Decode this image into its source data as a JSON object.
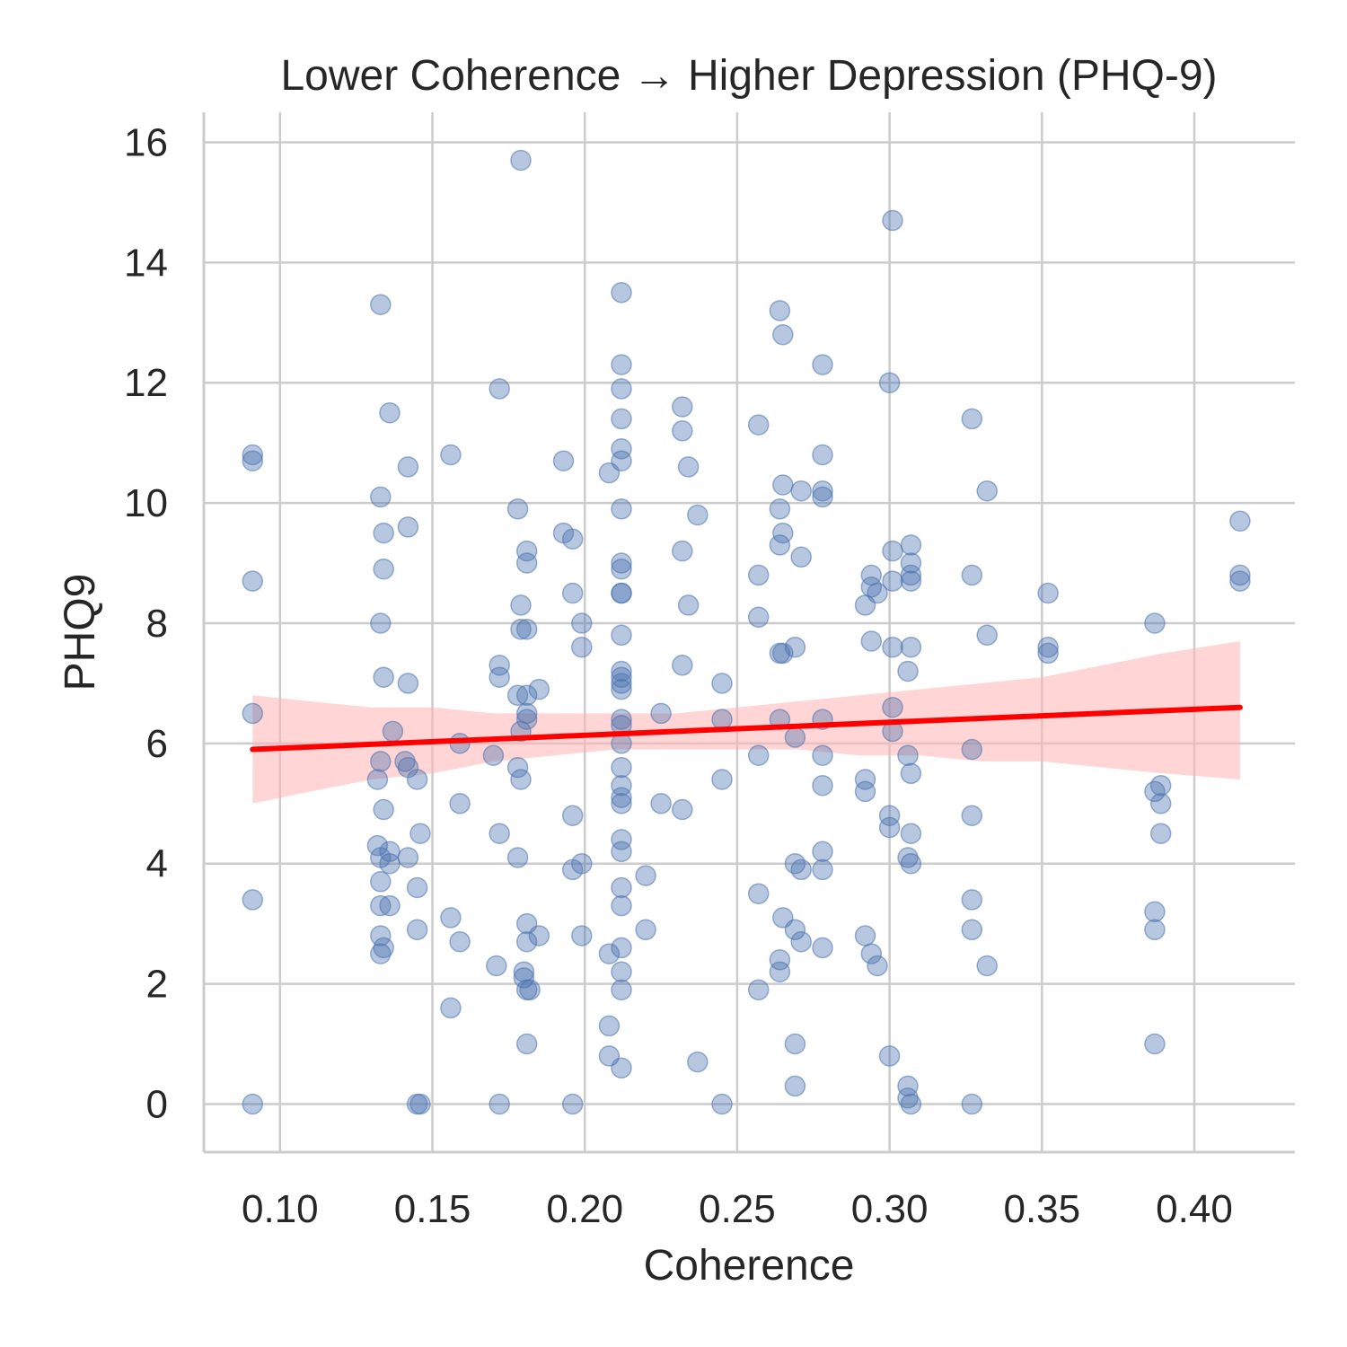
{
  "chart_data": {
    "type": "scatter",
    "title": "Lower Coherence → Higher Depression (PHQ-9)",
    "xlabel": "Coherence",
    "ylabel": "PHQ9",
    "xlim": [
      0.075,
      0.433
    ],
    "ylim": [
      -0.8,
      16.5
    ],
    "xticks": [
      0.1,
      0.15,
      0.2,
      0.25,
      0.3,
      0.35,
      0.4
    ],
    "xtick_labels": [
      "0.10",
      "0.15",
      "0.20",
      "0.25",
      "0.30",
      "0.35",
      "0.40"
    ],
    "yticks": [
      0,
      2,
      4,
      6,
      8,
      10,
      12,
      14,
      16
    ],
    "ytick_labels": [
      "0",
      "2",
      "4",
      "6",
      "8",
      "10",
      "12",
      "14",
      "16"
    ],
    "grid": true,
    "point_color": "#4C72B0",
    "regression_color": "#ff0000",
    "ci_color": "#ffb3b3",
    "points": [
      [
        0.091,
        10.8
      ],
      [
        0.091,
        10.7
      ],
      [
        0.091,
        8.7
      ],
      [
        0.091,
        6.5
      ],
      [
        0.091,
        3.4
      ],
      [
        0.091,
        0.0
      ],
      [
        0.133,
        13.3
      ],
      [
        0.133,
        10.1
      ],
      [
        0.134,
        9.5
      ],
      [
        0.134,
        8.9
      ],
      [
        0.133,
        8.0
      ],
      [
        0.134,
        7.1
      ],
      [
        0.132,
        5.4
      ],
      [
        0.133,
        5.7
      ],
      [
        0.134,
        4.9
      ],
      [
        0.132,
        4.3
      ],
      [
        0.133,
        4.1
      ],
      [
        0.133,
        3.7
      ],
      [
        0.133,
        3.3
      ],
      [
        0.133,
        2.8
      ],
      [
        0.133,
        2.5
      ],
      [
        0.134,
        2.6
      ],
      [
        0.136,
        11.5
      ],
      [
        0.137,
        6.2
      ],
      [
        0.136,
        4.2
      ],
      [
        0.136,
        4.0
      ],
      [
        0.136,
        3.3
      ],
      [
        0.142,
        10.6
      ],
      [
        0.142,
        9.6
      ],
      [
        0.142,
        7.0
      ],
      [
        0.141,
        5.7
      ],
      [
        0.142,
        5.6
      ],
      [
        0.142,
        4.1
      ],
      [
        0.145,
        5.4
      ],
      [
        0.145,
        3.6
      ],
      [
        0.145,
        2.9
      ],
      [
        0.145,
        0.0
      ],
      [
        0.146,
        0.0
      ],
      [
        0.146,
        4.5
      ],
      [
        0.156,
        10.8
      ],
      [
        0.156,
        3.1
      ],
      [
        0.156,
        1.6
      ],
      [
        0.159,
        6.0
      ],
      [
        0.159,
        5.0
      ],
      [
        0.159,
        2.7
      ],
      [
        0.171,
        2.3
      ],
      [
        0.172,
        11.9
      ],
      [
        0.172,
        7.3
      ],
      [
        0.172,
        7.1
      ],
      [
        0.172,
        4.5
      ],
      [
        0.172,
        0.0
      ],
      [
        0.17,
        5.8
      ],
      [
        0.178,
        9.9
      ],
      [
        0.178,
        6.8
      ],
      [
        0.178,
        5.6
      ],
      [
        0.178,
        4.1
      ],
      [
        0.179,
        15.7
      ],
      [
        0.179,
        8.3
      ],
      [
        0.179,
        7.9
      ],
      [
        0.179,
        6.2
      ],
      [
        0.179,
        5.4
      ],
      [
        0.181,
        9.2
      ],
      [
        0.181,
        9.0
      ],
      [
        0.181,
        7.9
      ],
      [
        0.181,
        6.8
      ],
      [
        0.181,
        6.5
      ],
      [
        0.181,
        6.4
      ],
      [
        0.181,
        3.0
      ],
      [
        0.181,
        2.7
      ],
      [
        0.181,
        1.9
      ],
      [
        0.181,
        1.0
      ],
      [
        0.18,
        2.1
      ],
      [
        0.18,
        2.2
      ],
      [
        0.182,
        1.9
      ],
      [
        0.185,
        6.9
      ],
      [
        0.185,
        2.8
      ],
      [
        0.193,
        10.7
      ],
      [
        0.193,
        9.5
      ],
      [
        0.196,
        9.4
      ],
      [
        0.196,
        8.5
      ],
      [
        0.196,
        4.8
      ],
      [
        0.196,
        3.9
      ],
      [
        0.196,
        0.0
      ],
      [
        0.199,
        8.0
      ],
      [
        0.199,
        7.6
      ],
      [
        0.199,
        4.0
      ],
      [
        0.199,
        2.8
      ],
      [
        0.208,
        10.5
      ],
      [
        0.208,
        2.5
      ],
      [
        0.208,
        1.3
      ],
      [
        0.208,
        0.8
      ],
      [
        0.212,
        13.5
      ],
      [
        0.212,
        12.3
      ],
      [
        0.212,
        11.9
      ],
      [
        0.212,
        11.4
      ],
      [
        0.212,
        10.9
      ],
      [
        0.212,
        10.7
      ],
      [
        0.212,
        9.9
      ],
      [
        0.212,
        9.0
      ],
      [
        0.212,
        8.9
      ],
      [
        0.212,
        8.5
      ],
      [
        0.212,
        8.5
      ],
      [
        0.212,
        7.8
      ],
      [
        0.212,
        7.2
      ],
      [
        0.212,
        7.1
      ],
      [
        0.212,
        7.0
      ],
      [
        0.212,
        6.9
      ],
      [
        0.212,
        6.4
      ],
      [
        0.212,
        6.3
      ],
      [
        0.212,
        6.0
      ],
      [
        0.212,
        5.6
      ],
      [
        0.212,
        5.3
      ],
      [
        0.212,
        5.1
      ],
      [
        0.212,
        5.0
      ],
      [
        0.212,
        4.4
      ],
      [
        0.212,
        4.2
      ],
      [
        0.212,
        3.6
      ],
      [
        0.212,
        3.3
      ],
      [
        0.212,
        2.6
      ],
      [
        0.212,
        2.2
      ],
      [
        0.212,
        1.9
      ],
      [
        0.212,
        0.6
      ],
      [
        0.22,
        3.8
      ],
      [
        0.22,
        2.9
      ],
      [
        0.225,
        6.5
      ],
      [
        0.225,
        5.0
      ],
      [
        0.232,
        11.6
      ],
      [
        0.232,
        11.2
      ],
      [
        0.232,
        9.2
      ],
      [
        0.232,
        7.3
      ],
      [
        0.232,
        4.9
      ],
      [
        0.234,
        10.6
      ],
      [
        0.234,
        8.3
      ],
      [
        0.237,
        9.8
      ],
      [
        0.237,
        0.7
      ],
      [
        0.245,
        7.0
      ],
      [
        0.245,
        6.4
      ],
      [
        0.245,
        5.4
      ],
      [
        0.245,
        0.0
      ],
      [
        0.257,
        11.3
      ],
      [
        0.257,
        8.8
      ],
      [
        0.257,
        8.1
      ],
      [
        0.257,
        5.8
      ],
      [
        0.257,
        3.5
      ],
      [
        0.257,
        1.9
      ],
      [
        0.264,
        13.2
      ],
      [
        0.264,
        9.9
      ],
      [
        0.264,
        9.3
      ],
      [
        0.264,
        7.5
      ],
      [
        0.264,
        6.4
      ],
      [
        0.264,
        2.4
      ],
      [
        0.264,
        2.2
      ],
      [
        0.265,
        12.8
      ],
      [
        0.265,
        10.3
      ],
      [
        0.265,
        9.5
      ],
      [
        0.265,
        7.5
      ],
      [
        0.265,
        3.1
      ],
      [
        0.269,
        7.6
      ],
      [
        0.269,
        6.1
      ],
      [
        0.269,
        4.0
      ],
      [
        0.269,
        2.9
      ],
      [
        0.269,
        1.0
      ],
      [
        0.269,
        0.3
      ],
      [
        0.271,
        10.2
      ],
      [
        0.271,
        9.1
      ],
      [
        0.271,
        3.9
      ],
      [
        0.271,
        2.7
      ],
      [
        0.278,
        12.3
      ],
      [
        0.278,
        10.8
      ],
      [
        0.278,
        10.2
      ],
      [
        0.278,
        10.1
      ],
      [
        0.278,
        6.4
      ],
      [
        0.278,
        5.8
      ],
      [
        0.278,
        5.3
      ],
      [
        0.278,
        4.2
      ],
      [
        0.278,
        3.9
      ],
      [
        0.278,
        2.6
      ],
      [
        0.292,
        8.3
      ],
      [
        0.292,
        5.4
      ],
      [
        0.292,
        5.2
      ],
      [
        0.292,
        2.8
      ],
      [
        0.294,
        8.8
      ],
      [
        0.294,
        8.6
      ],
      [
        0.294,
        7.7
      ],
      [
        0.294,
        2.5
      ],
      [
        0.296,
        8.5
      ],
      [
        0.296,
        2.3
      ],
      [
        0.3,
        12.0
      ],
      [
        0.3,
        4.8
      ],
      [
        0.3,
        4.6
      ],
      [
        0.3,
        0.8
      ],
      [
        0.301,
        14.7
      ],
      [
        0.301,
        9.2
      ],
      [
        0.301,
        8.7
      ],
      [
        0.301,
        7.6
      ],
      [
        0.301,
        6.6
      ],
      [
        0.301,
        6.2
      ],
      [
        0.306,
        7.2
      ],
      [
        0.306,
        5.8
      ],
      [
        0.306,
        4.1
      ],
      [
        0.306,
        0.3
      ],
      [
        0.306,
        0.1
      ],
      [
        0.307,
        9.3
      ],
      [
        0.307,
        9.0
      ],
      [
        0.307,
        8.8
      ],
      [
        0.307,
        8.7
      ],
      [
        0.307,
        7.6
      ],
      [
        0.307,
        5.5
      ],
      [
        0.307,
        4.5
      ],
      [
        0.307,
        4.0
      ],
      [
        0.307,
        0.0
      ],
      [
        0.327,
        11.4
      ],
      [
        0.327,
        8.8
      ],
      [
        0.327,
        5.9
      ],
      [
        0.327,
        4.8
      ],
      [
        0.327,
        3.4
      ],
      [
        0.327,
        2.9
      ],
      [
        0.327,
        0.0
      ],
      [
        0.332,
        10.2
      ],
      [
        0.332,
        7.8
      ],
      [
        0.332,
        2.3
      ],
      [
        0.352,
        8.5
      ],
      [
        0.352,
        7.6
      ],
      [
        0.352,
        7.5
      ],
      [
        0.387,
        8.0
      ],
      [
        0.387,
        5.2
      ],
      [
        0.387,
        3.2
      ],
      [
        0.387,
        2.9
      ],
      [
        0.387,
        1.0
      ],
      [
        0.389,
        5.3
      ],
      [
        0.389,
        5.0
      ],
      [
        0.389,
        4.5
      ],
      [
        0.415,
        9.7
      ],
      [
        0.415,
        8.8
      ],
      [
        0.415,
        8.7
      ]
    ],
    "regression": {
      "x": [
        0.091,
        0.415
      ],
      "y": [
        5.9,
        6.6
      ]
    },
    "ci_band": {
      "x": [
        0.091,
        0.11,
        0.13,
        0.15,
        0.17,
        0.19,
        0.21,
        0.23,
        0.25,
        0.27,
        0.29,
        0.31,
        0.33,
        0.35,
        0.37,
        0.39,
        0.415
      ],
      "upper": [
        6.8,
        6.7,
        6.6,
        6.6,
        6.5,
        6.5,
        6.5,
        6.5,
        6.6,
        6.7,
        6.8,
        6.9,
        7.0,
        7.1,
        7.3,
        7.5,
        7.7
      ],
      "lower": [
        5.0,
        5.2,
        5.4,
        5.5,
        5.7,
        5.8,
        5.9,
        5.9,
        5.9,
        5.9,
        5.8,
        5.8,
        5.7,
        5.7,
        5.6,
        5.5,
        5.4
      ]
    }
  }
}
